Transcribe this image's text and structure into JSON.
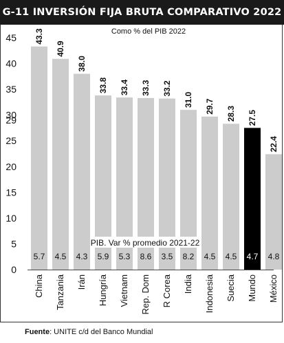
{
  "header": {
    "title": "G-11 INVERSIÓN FIJA BRUTA COMPARATIVO 2022"
  },
  "source": {
    "label": "Fuente",
    "text": ": UNITE c/d del Banco Mundial"
  },
  "colors": {
    "bar": "#cccccc",
    "highlight": "#000000",
    "axis_text": "#111111"
  },
  "chart_data": {
    "type": "bar",
    "title": "G-11 INVERSIÓN FIJA BRUTA COMPARATIVO 2022",
    "subtitle": "Como % del PIB 2022",
    "categories": [
      "China",
      "Tanzania",
      "Irán",
      "Hungría",
      "Vietnam",
      "Rep. Dom",
      "R Corea",
      "India",
      "Indonesia",
      "Suecia",
      "Mundo",
      "México"
    ],
    "series": [
      {
        "values": [
          43.3,
          40.9,
          38.0,
          33.8,
          33.4,
          33.3,
          33.2,
          31.0,
          29.7,
          28.3,
          27.5,
          22.4
        ]
      },
      {
        "name": "PIB. Var % promedio 2021-22",
        "values": [
          5.7,
          4.5,
          4.3,
          5.9,
          5.3,
          8.6,
          3.5,
          8.2,
          4.5,
          4.5,
          4.7,
          4.8
        ]
      }
    ],
    "value_labels": [
      "43.3",
      "40.9",
      "38.0",
      "33.8",
      "33.4",
      "33.3",
      "33.2",
      "31.0",
      "29.7",
      "28.3",
      "27.5",
      "22.4"
    ],
    "secondary_labels": [
      "5.7",
      "4.5",
      "4.3",
      "5.9",
      "5.3",
      "8.6",
      "3.5",
      "8.2",
      "4.5",
      "4.5",
      "4.7",
      "4.8"
    ],
    "highlight": "Mundo",
    "yticks": [
      0,
      5,
      10,
      15,
      20,
      25,
      29,
      30,
      35,
      40,
      45
    ],
    "ytick_labels": [
      "0",
      "5",
      "10",
      "15",
      "20",
      "25",
      "29",
      "30",
      "35",
      "40",
      "45"
    ],
    "ylim": [
      0,
      45
    ],
    "xlabel": "",
    "ylabel": "",
    "grid": false
  }
}
